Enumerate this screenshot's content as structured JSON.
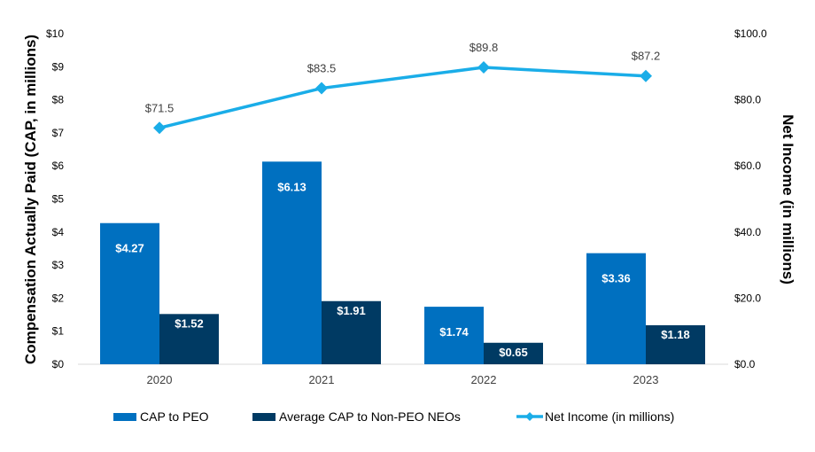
{
  "chart_data": {
    "type": "bar",
    "categories": [
      "2020",
      "2021",
      "2022",
      "2023"
    ],
    "ylabel": "Compensation Actually Paid (CAP, in millions)",
    "y2label": "Net Income (in millions)",
    "ylim": [
      0,
      10
    ],
    "y2lim": [
      0,
      100
    ],
    "yticks": [
      "$0",
      "$1",
      "$2",
      "$3",
      "$4",
      "$5",
      "$6",
      "$7",
      "$8",
      "$9",
      "$10"
    ],
    "y2ticks": [
      "$0.0",
      "$20.0",
      "$40.0",
      "$60.0",
      "$80.0",
      "$100.0"
    ],
    "grid": false,
    "legend_position": "bottom",
    "series": [
      {
        "name": "CAP to PEO",
        "type": "bar",
        "axis": "left",
        "color": "#0070C0",
        "values": [
          4.27,
          6.13,
          1.74,
          3.36
        ],
        "labels": [
          "$4.27",
          "$6.13",
          "$1.74",
          "$3.36"
        ]
      },
      {
        "name": "Average CAP to Non-PEO NEOs",
        "type": "bar",
        "axis": "left",
        "color": "#003A63",
        "values": [
          1.52,
          1.91,
          0.65,
          1.18
        ],
        "labels": [
          "$1.52",
          "$1.91",
          "$0.65",
          "$1.18"
        ]
      },
      {
        "name": "Net Income (in millions)",
        "type": "line",
        "axis": "right",
        "color": "#1AADE8",
        "values": [
          71.5,
          83.5,
          89.8,
          87.2
        ],
        "labels": [
          "$71.5",
          "$83.5",
          "$89.8",
          "$87.2"
        ]
      }
    ]
  }
}
